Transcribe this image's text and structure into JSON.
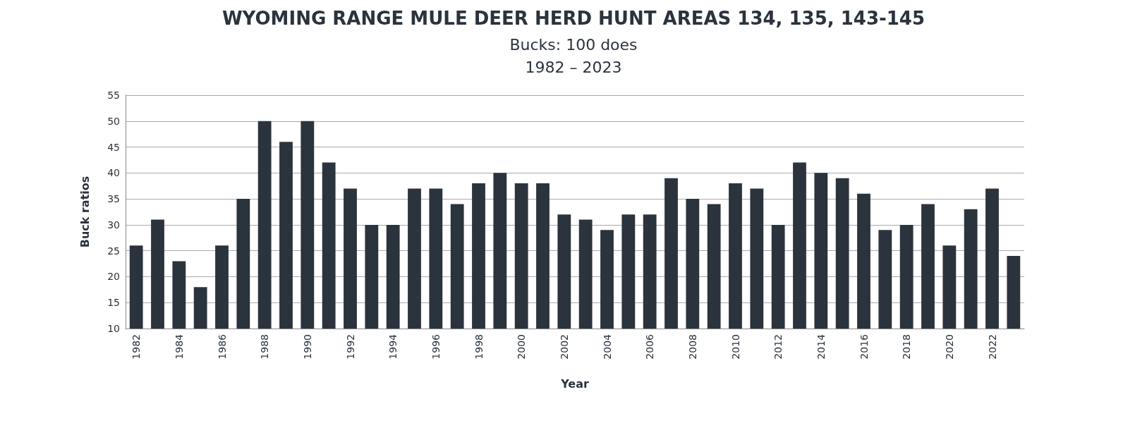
{
  "chart_data": {
    "type": "bar",
    "title": "WYOMING RANGE MULE DEER HERD HUNT AREAS 134, 135, 143-145",
    "subtitle": "Bucks: 100 does\n1982 – 2023",
    "xlabel": "Year",
    "ylabel": "Buck ratios",
    "categories": [
      "1982",
      null,
      "1984",
      null,
      "1986",
      null,
      "1988",
      null,
      "1990",
      null,
      "1992",
      null,
      "1994",
      null,
      "1996",
      null,
      "1998",
      null,
      "2000",
      null,
      "2002",
      null,
      "2004",
      null,
      "2006",
      null,
      "2008",
      null,
      "2010",
      null,
      "2012",
      null,
      "2014",
      null,
      "2016",
      null,
      "2018",
      null,
      "2020",
      null,
      "2022",
      null
    ],
    "values": [
      26,
      31,
      23,
      18,
      26,
      35,
      50,
      46,
      50,
      42,
      37,
      30,
      30,
      37,
      37,
      34,
      38,
      40,
      38,
      38,
      32,
      31,
      29,
      32,
      32,
      39,
      35,
      34,
      38,
      37,
      30,
      42,
      40,
      39,
      36,
      29,
      30,
      34,
      26,
      33,
      37,
      24
    ],
    "color": "#2b333d",
    "ylim": [
      10,
      55
    ],
    "yticks": [
      10,
      15,
      20,
      25,
      30,
      35,
      40,
      45,
      50,
      55
    ],
    "grid": "y"
  }
}
